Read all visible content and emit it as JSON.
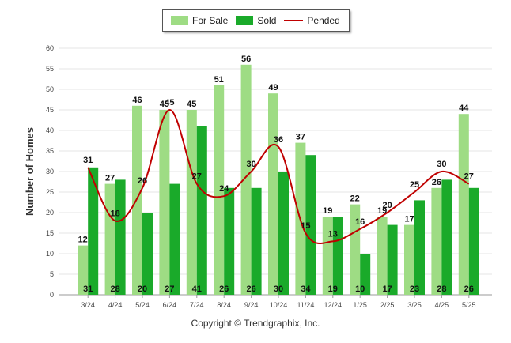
{
  "chart_data": {
    "type": "bar",
    "ylabel": "Number of Homes",
    "ylim": [
      0,
      60
    ],
    "yticks": [
      0,
      5,
      10,
      15,
      20,
      25,
      30,
      35,
      40,
      45,
      50,
      55,
      60
    ],
    "categories": [
      "3/24",
      "4/24",
      "5/24",
      "6/24",
      "7/24",
      "8/24",
      "9/24",
      "10/24",
      "11/24",
      "12/24",
      "1/25",
      "2/25",
      "3/25",
      "4/25",
      "5/25"
    ],
    "series": [
      {
        "name": "For Sale",
        "type": "bar",
        "color": "#9edc84",
        "values": [
          12,
          27,
          46,
          45,
          45,
          51,
          56,
          49,
          37,
          19,
          22,
          19,
          17,
          26,
          44
        ]
      },
      {
        "name": "Sold",
        "type": "bar",
        "color": "#1aaa2a",
        "values": [
          31,
          28,
          20,
          27,
          41,
          26,
          26,
          30,
          34,
          19,
          10,
          17,
          23,
          28,
          26
        ]
      },
      {
        "name": "Pended",
        "type": "line",
        "color": "#c00000",
        "values": [
          31,
          18,
          26,
          45,
          27,
          24,
          30,
          36,
          15,
          13,
          16,
          20,
          25,
          30,
          27
        ]
      }
    ],
    "legend": "top-center",
    "grid": true
  },
  "footer": {
    "copyright": "Copyright © Trendgraphix, Inc."
  }
}
